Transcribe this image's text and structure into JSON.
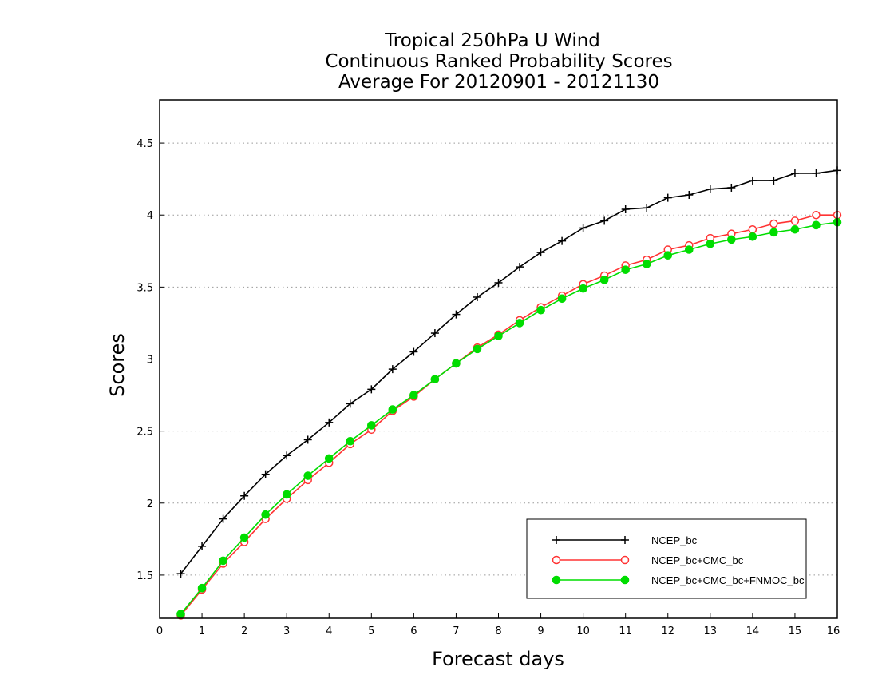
{
  "chart_data": {
    "type": "line",
    "title": [
      "Tropical 250hPa U Wind",
      "Continuous Ranked Probability Scores",
      "Average For 20120901 - 20121130"
    ],
    "xlabel": "Forecast days",
    "ylabel": "Scores",
    "xlim": [
      0,
      16
    ],
    "ylim": [
      1.2,
      4.8
    ],
    "xticks": [
      0,
      1,
      2,
      3,
      4,
      5,
      6,
      7,
      8,
      9,
      10,
      11,
      12,
      13,
      14,
      15,
      16
    ],
    "xtick_labels": [
      "0",
      "1",
      "2",
      "3",
      "4",
      "5",
      "6",
      "7",
      "8",
      "9",
      "10",
      "11",
      "12",
      "13",
      "14",
      "15",
      "16"
    ],
    "yticks": [
      1.5,
      2,
      2.5,
      3,
      3.5,
      4,
      4.5
    ],
    "ytick_labels": [
      "1.5",
      "2",
      "2.5",
      "3",
      "3.5",
      "4",
      "4.5"
    ],
    "grid": "horizontal dotted",
    "legend_position": "bottom-right",
    "x": [
      0.5,
      1,
      1.5,
      2,
      2.5,
      3,
      3.5,
      4,
      4.5,
      5,
      5.5,
      6,
      6.5,
      7,
      7.5,
      8,
      8.5,
      9,
      9.5,
      10,
      10.5,
      11,
      11.5,
      12,
      12.5,
      13,
      13.5,
      14,
      14.5,
      15,
      15.5,
      16
    ],
    "series": [
      {
        "name": "NCEP_bc",
        "color": "#000000",
        "marker": "plus",
        "values": [
          1.51,
          1.7,
          1.89,
          2.05,
          2.2,
          2.33,
          2.44,
          2.56,
          2.69,
          2.79,
          2.93,
          3.05,
          3.18,
          3.31,
          3.43,
          3.53,
          3.64,
          3.74,
          3.82,
          3.91,
          3.96,
          4.04,
          4.05,
          4.12,
          4.14,
          4.18,
          4.19,
          4.24,
          4.24,
          4.29,
          4.29,
          4.31
        ]
      },
      {
        "name": "NCEP_bc+CMC_bc",
        "color": "#ff3333",
        "marker": "open-circle",
        "values": [
          1.22,
          1.4,
          1.58,
          1.73,
          1.89,
          2.03,
          2.16,
          2.28,
          2.41,
          2.51,
          2.64,
          2.74,
          2.86,
          2.97,
          3.08,
          3.17,
          3.27,
          3.36,
          3.44,
          3.52,
          3.58,
          3.65,
          3.69,
          3.76,
          3.79,
          3.84,
          3.87,
          3.9,
          3.94,
          3.96,
          4.0,
          4.0
        ]
      },
      {
        "name": "NCEP_bc+CMC_bc+FNMOC_bc",
        "color": "#00dd00",
        "marker": "filled-circle",
        "values": [
          1.23,
          1.41,
          1.6,
          1.76,
          1.92,
          2.06,
          2.19,
          2.31,
          2.43,
          2.54,
          2.65,
          2.75,
          2.86,
          2.97,
          3.07,
          3.16,
          3.25,
          3.34,
          3.42,
          3.49,
          3.55,
          3.62,
          3.66,
          3.72,
          3.76,
          3.8,
          3.83,
          3.85,
          3.88,
          3.9,
          3.93,
          3.95
        ]
      }
    ]
  }
}
